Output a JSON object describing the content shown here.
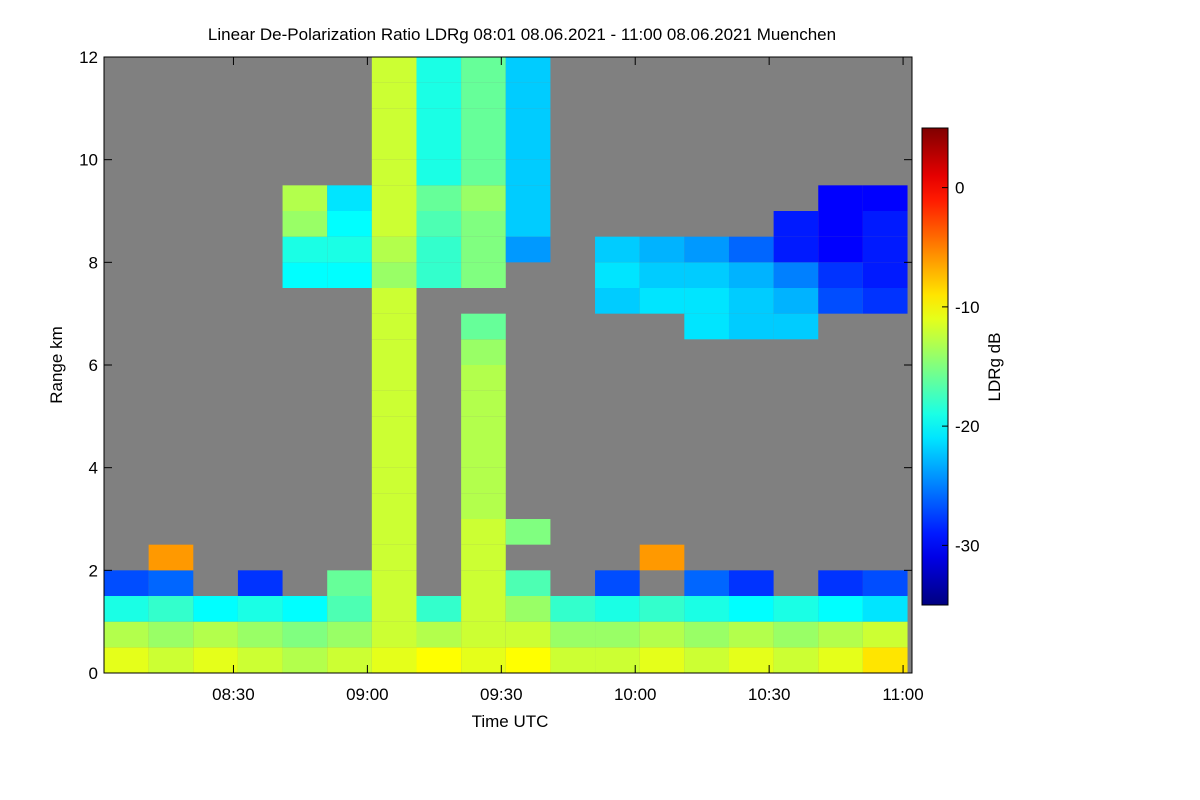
{
  "chart_data": {
    "type": "heatmap",
    "title": "Linear De-Polarization Ratio LDRg   08:01 08.06.2021 - 11:00 08.06.2021 Muenchen",
    "x_label": "Time UTC",
    "y_label": "Range km",
    "colorbar_label": "LDRg dB",
    "colormap": "jet",
    "background": "#808080",
    "xlim": [
      481,
      662
    ],
    "xticks": [
      {
        "value": 510,
        "label": "08:30"
      },
      {
        "value": 540,
        "label": "09:00"
      },
      {
        "value": 570,
        "label": "09:30"
      },
      {
        "value": 600,
        "label": "10:00"
      },
      {
        "value": 630,
        "label": "10:30"
      },
      {
        "value": 660,
        "label": "11:00"
      }
    ],
    "ylim": [
      0,
      12
    ],
    "yticks": [
      0,
      2,
      4,
      6,
      8,
      10,
      12
    ],
    "clim": [
      -35,
      5
    ],
    "cticks": [
      0,
      -10,
      -20,
      -30
    ],
    "x": [
      486,
      496,
      506,
      516,
      526,
      536,
      546,
      556,
      566,
      576,
      586,
      596,
      606,
      616,
      626,
      636,
      646,
      656
    ],
    "y": [
      0.25,
      0.75,
      1.25,
      1.75,
      2.25,
      2.75,
      3.25,
      3.75,
      4.25,
      4.75,
      5.25,
      5.75,
      6.25,
      6.75,
      7.25,
      7.75,
      8.25,
      8.75,
      9.25,
      9.75,
      10.25,
      10.75,
      11.25,
      11.75
    ],
    "z": [
      [
        -11,
        -12,
        -11,
        -12,
        -13,
        -12,
        -11,
        -10,
        -11,
        -10,
        -12,
        -12,
        -11,
        -12,
        -11,
        -12,
        -11,
        -9
      ],
      [
        -13,
        -14,
        -13,
        -14,
        -15,
        -14,
        -12,
        -13,
        -12,
        -12,
        -14,
        -14,
        -13,
        -14,
        -13,
        -14,
        -13,
        -12
      ],
      [
        -19,
        -18,
        -20,
        -19,
        -20,
        -17,
        -12,
        -18,
        -12,
        -14,
        -18,
        -19,
        -18,
        -19,
        -20,
        -19,
        -20,
        -21
      ],
      [
        -27,
        -26,
        null,
        -28,
        null,
        -16,
        -12,
        null,
        -12,
        -17,
        null,
        -27,
        null,
        -26,
        -28,
        null,
        -28,
        -27
      ],
      [
        null,
        -6,
        null,
        null,
        null,
        null,
        -12,
        null,
        -12,
        null,
        null,
        null,
        -6,
        null,
        null,
        null,
        null,
        null
      ],
      [
        null,
        null,
        null,
        null,
        null,
        null,
        -12,
        null,
        -12,
        -15,
        null,
        null,
        null,
        null,
        null,
        null,
        null,
        null
      ],
      [
        null,
        null,
        null,
        null,
        null,
        null,
        -12,
        null,
        -13,
        null,
        null,
        null,
        null,
        null,
        null,
        null,
        null,
        null
      ],
      [
        null,
        null,
        null,
        null,
        null,
        null,
        -12,
        null,
        -13,
        null,
        null,
        null,
        null,
        null,
        null,
        null,
        null,
        null
      ],
      [
        null,
        null,
        null,
        null,
        null,
        null,
        -12,
        null,
        -13,
        null,
        null,
        null,
        null,
        null,
        null,
        null,
        null,
        null
      ],
      [
        null,
        null,
        null,
        null,
        null,
        null,
        -12,
        null,
        -13,
        null,
        null,
        null,
        null,
        null,
        null,
        null,
        null,
        null
      ],
      [
        null,
        null,
        null,
        null,
        null,
        null,
        -12,
        null,
        -13,
        null,
        null,
        null,
        null,
        null,
        null,
        null,
        null,
        null
      ],
      [
        null,
        null,
        null,
        null,
        null,
        null,
        -12,
        null,
        -13,
        null,
        null,
        null,
        null,
        null,
        null,
        null,
        null,
        null
      ],
      [
        null,
        null,
        null,
        null,
        null,
        null,
        -12,
        null,
        -14,
        null,
        null,
        null,
        null,
        null,
        null,
        null,
        null,
        null
      ],
      [
        null,
        null,
        null,
        null,
        null,
        null,
        -12,
        null,
        -16,
        null,
        null,
        null,
        null,
        -21,
        -22,
        -22,
        null,
        null
      ],
      [
        null,
        null,
        null,
        null,
        null,
        null,
        -12,
        null,
        null,
        null,
        null,
        -22,
        -21,
        -21,
        -22,
        -23,
        -27,
        -28
      ],
      [
        null,
        null,
        null,
        null,
        -20,
        -20,
        -14,
        -18,
        -15,
        null,
        null,
        -21,
        -22,
        -22,
        -23,
        -25,
        -28,
        -29
      ],
      [
        null,
        null,
        null,
        null,
        -19,
        -19,
        -13,
        -18,
        -15,
        -24,
        null,
        -22,
        -23,
        -24,
        -26,
        -29,
        -30,
        -29
      ],
      [
        null,
        null,
        null,
        null,
        -14,
        -20,
        -12,
        -17,
        -15,
        -22,
        null,
        null,
        null,
        null,
        null,
        -29,
        -30,
        -29
      ],
      [
        null,
        null,
        null,
        null,
        -13,
        -21,
        -12,
        -16,
        -14,
        -22,
        null,
        null,
        null,
        null,
        null,
        null,
        -30,
        -30
      ],
      [
        null,
        null,
        null,
        null,
        null,
        null,
        -12,
        -19,
        -16,
        -22,
        null,
        null,
        null,
        null,
        null,
        null,
        null,
        null
      ],
      [
        null,
        null,
        null,
        null,
        null,
        null,
        -12,
        -19,
        -16,
        -22,
        null,
        null,
        null,
        null,
        null,
        null,
        null,
        null
      ],
      [
        null,
        null,
        null,
        null,
        null,
        null,
        -12,
        -19,
        -16,
        -22,
        null,
        null,
        null,
        null,
        null,
        null,
        null,
        null
      ],
      [
        null,
        null,
        null,
        null,
        null,
        null,
        -12,
        -19,
        -16,
        -22,
        null,
        null,
        null,
        null,
        null,
        null,
        null,
        null
      ],
      [
        null,
        null,
        null,
        null,
        null,
        null,
        -12,
        -19,
        -16,
        -22,
        null,
        null,
        null,
        null,
        null,
        null,
        null,
        null
      ]
    ]
  }
}
